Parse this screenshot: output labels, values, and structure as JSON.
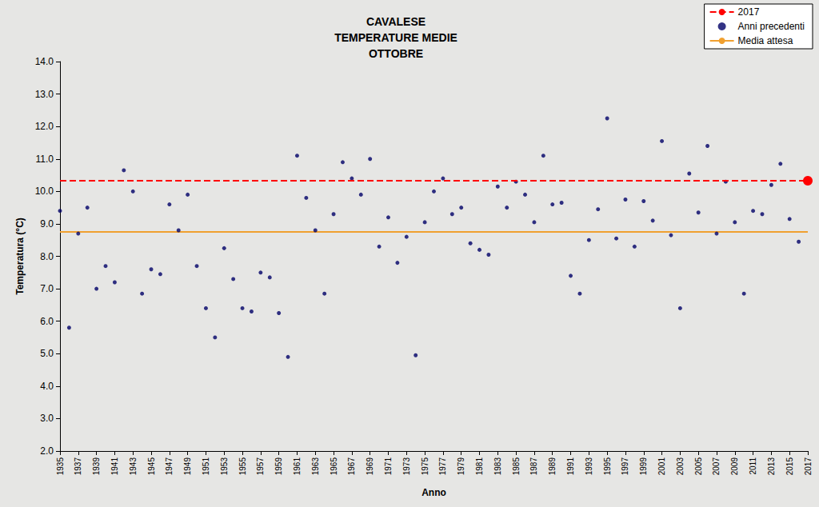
{
  "chart_data": {
    "type": "scatter",
    "title": [
      "CAVALESE",
      "TEMPERATURE MEDIE",
      "OTTOBRE"
    ],
    "xlabel": "Anno",
    "ylabel": "Temperatura (°C)",
    "xlim": [
      1935,
      2017
    ],
    "xticks": [
      1935,
      1937,
      1939,
      1941,
      1943,
      1945,
      1947,
      1949,
      1951,
      1953,
      1955,
      1957,
      1959,
      1961,
      1963,
      1965,
      1967,
      1969,
      1971,
      1973,
      1975,
      1977,
      1979,
      1981,
      1983,
      1985,
      1987,
      1989,
      1991,
      1993,
      1995,
      1997,
      1999,
      2001,
      2003,
      2005,
      2007,
      2009,
      2011,
      2013,
      2015,
      2017
    ],
    "ylim": [
      2,
      14
    ],
    "yticks": [
      {
        "value": 2,
        "label": "2.0"
      },
      {
        "value": 3,
        "label": "3.0"
      },
      {
        "value": 4,
        "label": "4.0"
      },
      {
        "value": 5,
        "label": "5.0"
      },
      {
        "value": 6,
        "label": "6.0"
      },
      {
        "value": 7,
        "label": "7.0"
      },
      {
        "value": 8,
        "label": "8.0"
      },
      {
        "value": 9,
        "label": "9.0"
      },
      {
        "value": 10,
        "label": "10.0"
      },
      {
        "value": 11,
        "label": "11.0"
      },
      {
        "value": 12,
        "label": "12.0"
      },
      {
        "value": 13,
        "label": "13.0"
      },
      {
        "value": 14,
        "label": "14.0"
      }
    ],
    "grid": false,
    "legend": "top-right",
    "series": [
      {
        "name": "2017",
        "type": "line",
        "color": "#ff0000",
        "marker": "circle",
        "line_style": "dashed",
        "x": [
          2017
        ],
        "values": [
          10.33
        ]
      },
      {
        "name": "Anni precedenti",
        "type": "scatter",
        "color": "#000066",
        "marker": "circle",
        "x": [
          1935,
          1936,
          1937,
          1938,
          1939,
          1940,
          1941,
          1942,
          1943,
          1944,
          1945,
          1946,
          1947,
          1948,
          1949,
          1950,
          1951,
          1952,
          1953,
          1954,
          1955,
          1956,
          1957,
          1958,
          1959,
          1960,
          1961,
          1962,
          1963,
          1964,
          1965,
          1966,
          1967,
          1968,
          1969,
          1970,
          1971,
          1972,
          1973,
          1974,
          1975,
          1976,
          1977,
          1978,
          1979,
          1980,
          1981,
          1982,
          1983,
          1984,
          1985,
          1986,
          1987,
          1988,
          1989,
          1990,
          1991,
          1992,
          1993,
          1994,
          1995,
          1996,
          1997,
          1998,
          1999,
          2000,
          2001,
          2002,
          2003,
          2004,
          2005,
          2006,
          2007,
          2008,
          2009,
          2010,
          2011,
          2012,
          2013,
          2014,
          2015,
          2016
        ],
        "values": [
          9.4,
          5.8,
          8.7,
          9.5,
          7.0,
          7.7,
          7.2,
          10.65,
          10.0,
          6.85,
          7.6,
          7.45,
          9.6,
          8.8,
          9.9,
          7.7,
          6.4,
          5.5,
          8.25,
          7.3,
          6.4,
          6.3,
          7.5,
          7.35,
          6.25,
          4.9,
          11.1,
          9.8,
          8.8,
          6.85,
          9.3,
          10.9,
          10.4,
          9.9,
          11.0,
          8.3,
          9.2,
          7.8,
          8.6,
          4.95,
          9.05,
          10.0,
          10.4,
          9.3,
          9.5,
          8.4,
          8.2,
          8.05,
          10.15,
          9.5,
          10.3,
          9.9,
          9.05,
          11.1,
          9.6,
          9.65,
          7.4,
          6.85,
          8.5,
          9.45,
          12.25,
          8.55,
          9.75,
          8.3,
          9.7,
          9.1,
          11.55,
          8.65,
          6.4,
          10.55,
          9.35,
          11.4,
          8.7,
          10.3,
          9.05,
          6.85,
          9.4,
          9.3,
          10.2,
          10.85,
          9.15,
          8.45
        ]
      },
      {
        "name": "Media attesa",
        "type": "hline",
        "color": "#f0a030",
        "line_style": "solid",
        "values": [
          8.75
        ]
      }
    ]
  }
}
